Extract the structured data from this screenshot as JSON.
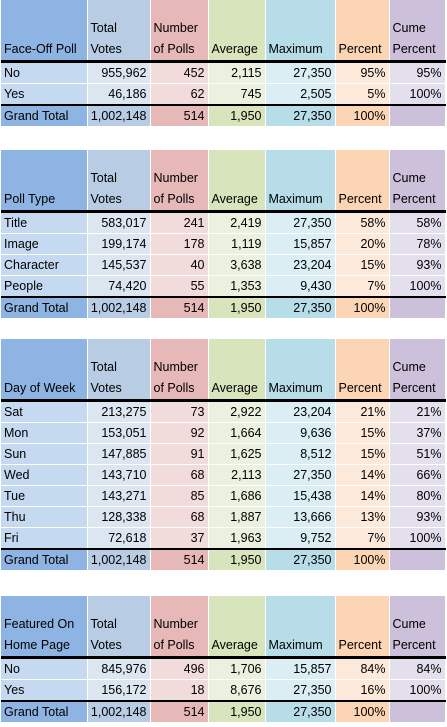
{
  "headers": {
    "total_votes": "Total Votes",
    "number_of_polls": "Number of Polls",
    "average": "Average",
    "maximum": "Maximum",
    "percent": "Percent",
    "cume_percent": "Cume Percent"
  },
  "tables": [
    {
      "dimension": "Face-Off Poll",
      "rows": [
        {
          "label": "No",
          "total_votes": "955,962",
          "number_of_polls": "452",
          "average": "2,115",
          "maximum": "27,350",
          "percent": "95%",
          "cume_percent": "95%"
        },
        {
          "label": "Yes",
          "total_votes": "46,186",
          "number_of_polls": "62",
          "average": "745",
          "maximum": "2,505",
          "percent": "5%",
          "cume_percent": "100%"
        }
      ],
      "total": {
        "label": "Grand Total",
        "total_votes": "1,002,148",
        "number_of_polls": "514",
        "average": "1,950",
        "maximum": "27,350",
        "percent": "100%",
        "cume_percent": ""
      }
    },
    {
      "dimension": "Poll Type",
      "rows": [
        {
          "label": "Title",
          "total_votes": "583,017",
          "number_of_polls": "241",
          "average": "2,419",
          "maximum": "27,350",
          "percent": "58%",
          "cume_percent": "58%"
        },
        {
          "label": "Image",
          "total_votes": "199,174",
          "number_of_polls": "178",
          "average": "1,119",
          "maximum": "15,857",
          "percent": "20%",
          "cume_percent": "78%"
        },
        {
          "label": "Character",
          "total_votes": "145,537",
          "number_of_polls": "40",
          "average": "3,638",
          "maximum": "23,204",
          "percent": "15%",
          "cume_percent": "93%"
        },
        {
          "label": "People",
          "total_votes": "74,420",
          "number_of_polls": "55",
          "average": "1,353",
          "maximum": "9,430",
          "percent": "7%",
          "cume_percent": "100%"
        }
      ],
      "total": {
        "label": "Grand Total",
        "total_votes": "1,002,148",
        "number_of_polls": "514",
        "average": "1,950",
        "maximum": "27,350",
        "percent": "100%",
        "cume_percent": ""
      }
    },
    {
      "dimension": "Day of Week",
      "rows": [
        {
          "label": "Sat",
          "total_votes": "213,275",
          "number_of_polls": "73",
          "average": "2,922",
          "maximum": "23,204",
          "percent": "21%",
          "cume_percent": "21%"
        },
        {
          "label": "Mon",
          "total_votes": "153,051",
          "number_of_polls": "92",
          "average": "1,664",
          "maximum": "9,636",
          "percent": "15%",
          "cume_percent": "37%"
        },
        {
          "label": "Sun",
          "total_votes": "147,885",
          "number_of_polls": "91",
          "average": "1,625",
          "maximum": "8,512",
          "percent": "15%",
          "cume_percent": "51%"
        },
        {
          "label": "Wed",
          "total_votes": "143,710",
          "number_of_polls": "68",
          "average": "2,113",
          "maximum": "27,350",
          "percent": "14%",
          "cume_percent": "66%"
        },
        {
          "label": "Tue",
          "total_votes": "143,271",
          "number_of_polls": "85",
          "average": "1,686",
          "maximum": "15,438",
          "percent": "14%",
          "cume_percent": "80%"
        },
        {
          "label": "Thu",
          "total_votes": "128,338",
          "number_of_polls": "68",
          "average": "1,887",
          "maximum": "13,666",
          "percent": "13%",
          "cume_percent": "93%"
        },
        {
          "label": "Fri",
          "total_votes": "72,618",
          "number_of_polls": "37",
          "average": "1,963",
          "maximum": "9,752",
          "percent": "7%",
          "cume_percent": "100%"
        }
      ],
      "total": {
        "label": "Grand Total",
        "total_votes": "1,002,148",
        "number_of_polls": "514",
        "average": "1,950",
        "maximum": "27,350",
        "percent": "100%",
        "cume_percent": ""
      }
    },
    {
      "dimension": "Featured On Home Page",
      "rows": [
        {
          "label": "No",
          "total_votes": "845,976",
          "number_of_polls": "496",
          "average": "1,706",
          "maximum": "15,857",
          "percent": "84%",
          "cume_percent": "84%"
        },
        {
          "label": "Yes",
          "total_votes": "156,172",
          "number_of_polls": "18",
          "average": "8,676",
          "maximum": "27,350",
          "percent": "16%",
          "cume_percent": "100%"
        }
      ],
      "total": {
        "label": "Grand Total",
        "total_votes": "1,002,148",
        "number_of_polls": "514",
        "average": "1,950",
        "maximum": "27,350",
        "percent": "100%",
        "cume_percent": ""
      }
    }
  ]
}
